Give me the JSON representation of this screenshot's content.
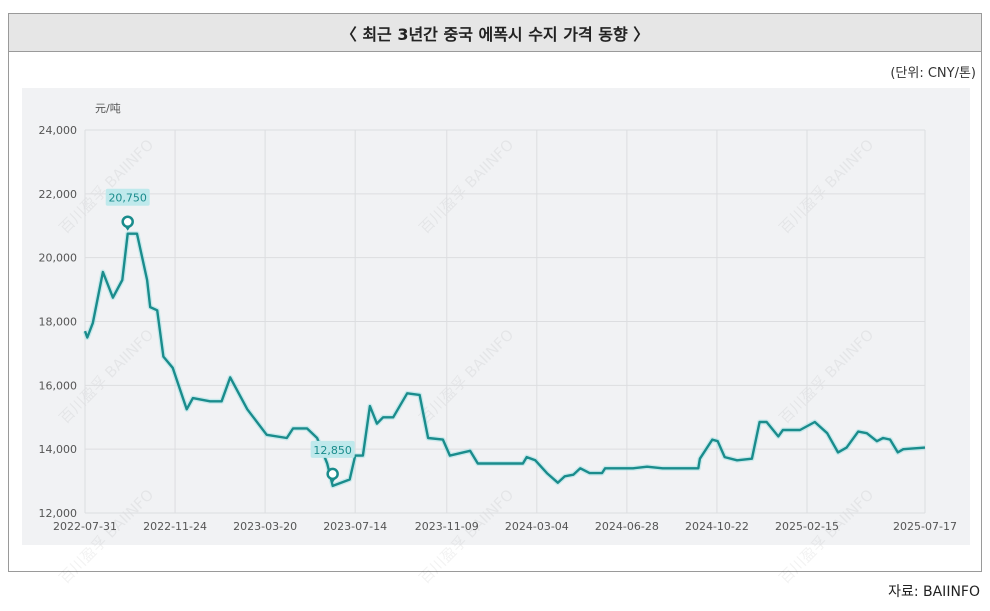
{
  "header": {
    "title": "〈 최근 3년간 중국 에폭시 수지 가격 동향 〉",
    "unit": "(단위: CNY/톤)"
  },
  "footer": {
    "source": "자료: BAIINFO"
  },
  "watermark": "百川盈孚 BAIINFO",
  "colors": {
    "line": "#1a8c8c",
    "label_bg": "#bfe9ec",
    "label_text": "#1a8c8c",
    "grid": "#dcdde0",
    "panel": "#f1f2f4"
  },
  "chart_data": {
    "type": "line",
    "ylabel": "元/吨",
    "ylim": [
      12000,
      24000
    ],
    "yticks": [
      "12,000",
      "14,000",
      "16,000",
      "18,000",
      "20,000",
      "22,000",
      "24,000"
    ],
    "ytick_values": [
      12000,
      14000,
      16000,
      18000,
      20000,
      22000,
      24000
    ],
    "xticks": [
      "2022-07-31",
      "2022-11-24",
      "2023-03-20",
      "2023-07-14",
      "2023-11-09",
      "2024-03-04",
      "2024-06-28",
      "2024-10-22",
      "2025-02-15",
      "2025-07-17"
    ],
    "xlim": [
      "2022-07-31",
      "2025-07-17"
    ],
    "grid": true,
    "annotations": [
      {
        "label": "20,750",
        "x": "2022-09-24",
        "y": 20750,
        "kind": "max"
      },
      {
        "label": "12,850",
        "x": "2023-06-15",
        "y": 12850,
        "kind": "min"
      }
    ],
    "series": [
      {
        "x": [
          "2022-07-31",
          "2022-08-03",
          "2022-08-10",
          "2022-08-23",
          "2022-09-05",
          "2022-09-17",
          "2022-09-24",
          "2022-10-06",
          "2022-10-19",
          "2022-10-23",
          "2022-11-01",
          "2022-11-09",
          "2022-11-21",
          "2022-12-09",
          "2022-12-17",
          "2023-01-08",
          "2023-01-23",
          "2023-02-03",
          "2023-02-25",
          "2023-03-22",
          "2023-04-17",
          "2023-04-25",
          "2023-05-13",
          "2023-05-26",
          "2023-06-08",
          "2023-06-15",
          "2023-07-07",
          "2023-07-14",
          "2023-07-24",
          "2023-08-02",
          "2023-08-11",
          "2023-08-19",
          "2023-09-01",
          "2023-09-19",
          "2023-10-05",
          "2023-10-16",
          "2023-11-04",
          "2023-11-13",
          "2023-12-09",
          "2023-12-19",
          "2024-02-15",
          "2024-02-20",
          "2024-03-02",
          "2024-03-17",
          "2024-03-31",
          "2024-04-09",
          "2024-04-20",
          "2024-04-29",
          "2024-05-11",
          "2024-05-27",
          "2024-05-31",
          "2024-07-06",
          "2024-07-24",
          "2024-08-13",
          "2024-09-28",
          "2024-09-30",
          "2024-10-16",
          "2024-10-23",
          "2024-11-01",
          "2024-11-17",
          "2024-12-06",
          "2024-12-16",
          "2024-12-25",
          "2025-01-09",
          "2025-01-15",
          "2025-02-06",
          "2025-02-25",
          "2025-03-13",
          "2025-03-27",
          "2025-04-07",
          "2025-04-22",
          "2025-05-03",
          "2025-05-16",
          "2025-05-24",
          "2025-06-02",
          "2025-06-12",
          "2025-06-19",
          "2025-07-17"
        ],
        "values": [
          17700,
          17500,
          17950,
          19550,
          18750,
          19300,
          20750,
          20750,
          19300,
          18450,
          18350,
          16900,
          16550,
          15250,
          15600,
          15500,
          15500,
          16250,
          15250,
          14450,
          14350,
          14650,
          14650,
          14350,
          13550,
          12850,
          13050,
          13800,
          13800,
          15350,
          14800,
          15000,
          15000,
          15750,
          15700,
          14350,
          14300,
          13800,
          13950,
          13550,
          13550,
          13750,
          13650,
          13250,
          12950,
          13150,
          13200,
          13400,
          13250,
          13250,
          13400,
          13400,
          13450,
          13400,
          13400,
          13700,
          14300,
          14250,
          13750,
          13650,
          13700,
          14850,
          14850,
          14400,
          14600,
          14600,
          14850,
          14500,
          13900,
          14050,
          14550,
          14500,
          14250,
          14350,
          14300,
          13900,
          14000,
          14050
        ]
      }
    ]
  }
}
